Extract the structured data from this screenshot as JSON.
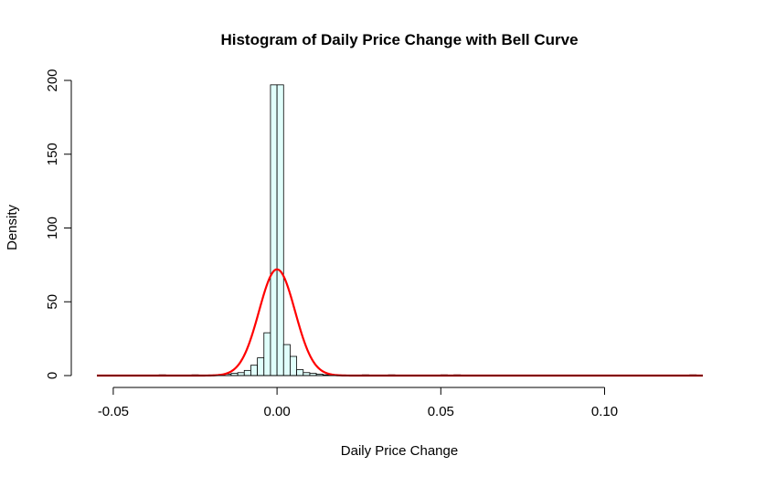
{
  "chart_data": {
    "type": "bar",
    "title": "Histogram of Daily Price Change with Bell Curve",
    "xlabel": "Daily Price Change",
    "ylabel": "Density",
    "xlim": [
      -0.055,
      0.13
    ],
    "ylim": [
      0,
      200
    ],
    "x_ticks": [
      -0.05,
      0.0,
      0.05,
      0.1
    ],
    "x_tick_labels": [
      "-0.05",
      "0.00",
      "0.05",
      "0.10"
    ],
    "y_ticks": [
      0,
      50,
      100,
      150,
      200
    ],
    "y_tick_labels": [
      "0",
      "50",
      "100",
      "150",
      "200"
    ],
    "grid": false,
    "bar_fill_color": "#e0fffb",
    "curve_color": "#ff0000",
    "bin_width": 0.002,
    "bin_starts": [
      -0.018,
      -0.016,
      -0.014,
      -0.012,
      -0.01,
      -0.008,
      -0.006,
      -0.004,
      -0.002,
      0.0,
      0.002,
      0.004,
      0.006,
      0.008,
      0.01,
      0.012,
      0.014,
      0.016
    ],
    "values": [
      0.5,
      1,
      1.5,
      2,
      3.5,
      7,
      12,
      29,
      197,
      197,
      21,
      13,
      4,
      2,
      1.5,
      1,
      0.5,
      0.3
    ],
    "outlier_bin_starts": [
      -0.036,
      -0.026,
      0.026,
      0.034,
      0.05,
      0.054,
      0.126
    ],
    "outlier_values": [
      0.5,
      0.5,
      0.5,
      0.5,
      0.5,
      0.5,
      0.5
    ],
    "bell_curve": {
      "name": "Bell Curve",
      "mean": 0.0,
      "sd": 0.0055,
      "peak_density": 72
    }
  }
}
